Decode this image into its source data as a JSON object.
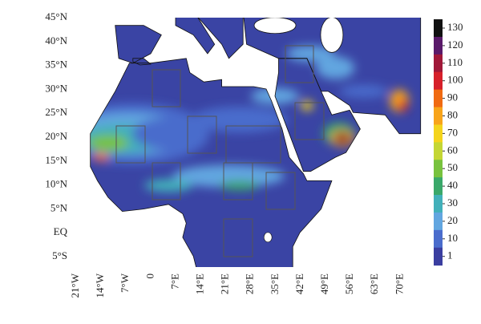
{
  "map": {
    "lat_labels": [
      "45°N",
      "40°N",
      "35°N",
      "30°N",
      "25°N",
      "20°N",
      "15°N",
      "10°N",
      "5°N",
      "EQ",
      "5°S"
    ],
    "lon_labels": [
      "21°W",
      "14°W",
      "7°W",
      "0",
      "7°E",
      "14°E",
      "21°E",
      "28°E",
      "35°E",
      "42°E",
      "49°E",
      "56°E",
      "63°E",
      "70°E"
    ],
    "colorbar": {
      "ticks": [
        130,
        120,
        110,
        100,
        90,
        80,
        70,
        60,
        50,
        40,
        30,
        20,
        10,
        1
      ],
      "colors": [
        "#111111",
        "#5a1a6a",
        "#a01838",
        "#d6202a",
        "#f06a12",
        "#f8a41a",
        "#f4d41c",
        "#c4d634",
        "#78c23e",
        "#3aa86a",
        "#42b0ba",
        "#62a6e0",
        "#4a6ccc",
        "#3a3ea0"
      ]
    }
  }
}
